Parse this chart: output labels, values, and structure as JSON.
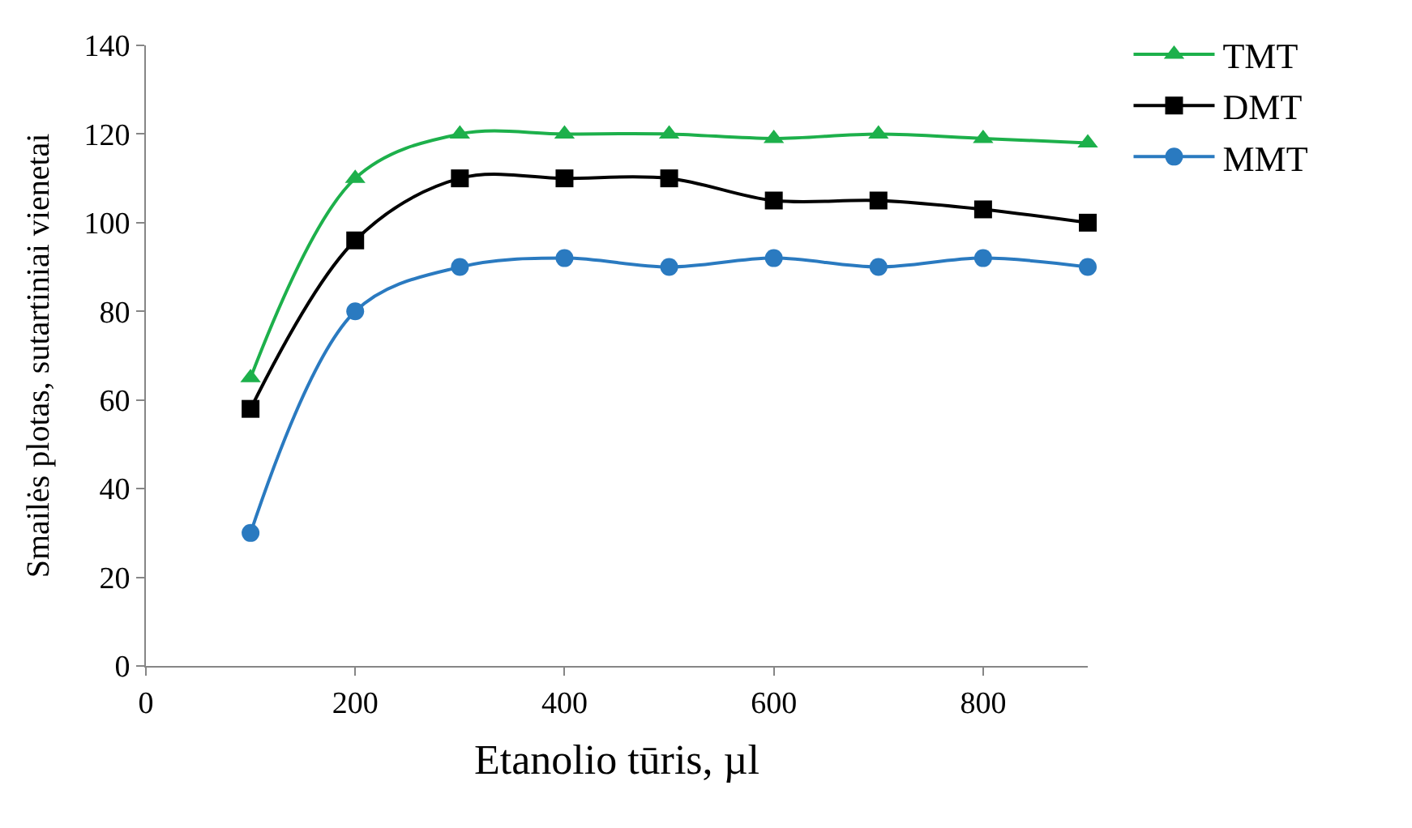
{
  "chart_data": {
    "type": "line",
    "xlabel": "Etanolio tūris, µl",
    "ylabel": "Smailės plotas, sutartiniai vienetai",
    "x": [
      100,
      200,
      300,
      400,
      500,
      600,
      700,
      800,
      900
    ],
    "series": [
      {
        "name": "TMT",
        "color": "#1db04b",
        "marker": "triangle",
        "values": [
          65,
          110,
          120,
          120,
          120,
          119,
          120,
          119,
          118
        ]
      },
      {
        "name": "DMT",
        "color": "#000000",
        "marker": "square",
        "values": [
          58,
          96,
          110,
          110,
          110,
          105,
          105,
          103,
          100
        ]
      },
      {
        "name": "MMT",
        "color": "#2a7ac0",
        "marker": "circle",
        "values": [
          30,
          80,
          90,
          92,
          90,
          92,
          90,
          92,
          90
        ]
      }
    ],
    "xlim": [
      0,
      900
    ],
    "xticks": [
      0,
      200,
      400,
      600,
      800
    ],
    "ylim": [
      0,
      140
    ],
    "yticks": [
      0,
      20,
      40,
      60,
      80,
      100,
      120,
      140
    ],
    "legend": "top right",
    "line_style": "solid"
  }
}
